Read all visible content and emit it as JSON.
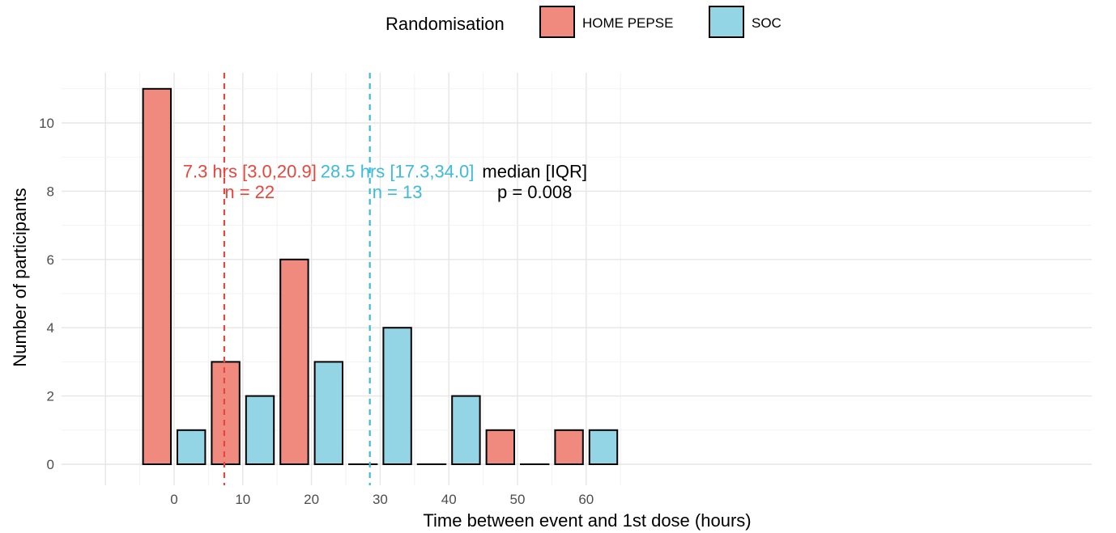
{
  "chart_data": {
    "type": "bar",
    "xlabel": "Time between event and 1st dose (hours)",
    "ylabel": "Number of participants",
    "xlim": [
      -10,
      65
    ],
    "ylim": [
      0,
      11
    ],
    "x_ticks": [
      0,
      10,
      20,
      30,
      40,
      50,
      60
    ],
    "y_ticks": [
      0,
      2,
      4,
      6,
      8,
      10
    ],
    "grid": true,
    "bin_width": 5,
    "bins": [
      {
        "start": -5,
        "end": 0,
        "group": "HOME PEPSE",
        "count": 11
      },
      {
        "start": 0,
        "end": 5,
        "group": "SOC",
        "count": 1
      },
      {
        "start": 5,
        "end": 10,
        "group": "HOME PEPSE",
        "count": 3
      },
      {
        "start": 10,
        "end": 15,
        "group": "SOC",
        "count": 2
      },
      {
        "start": 15,
        "end": 20,
        "group": "HOME PEPSE",
        "count": 6
      },
      {
        "start": 20,
        "end": 25,
        "group": "SOC",
        "count": 3
      },
      {
        "start": 25,
        "end": 30,
        "group": "HOME PEPSE",
        "count": 0
      },
      {
        "start": 30,
        "end": 35,
        "group": "SOC",
        "count": 4
      },
      {
        "start": 35,
        "end": 40,
        "group": "HOME PEPSE",
        "count": 0
      },
      {
        "start": 40,
        "end": 45,
        "group": "SOC",
        "count": 2
      },
      {
        "start": 45,
        "end": 50,
        "group": "HOME PEPSE",
        "count": 1
      },
      {
        "start": 50,
        "end": 55,
        "group": "SOC",
        "count": 0
      },
      {
        "start": 55,
        "end": 60,
        "group": "HOME PEPSE",
        "count": 1
      },
      {
        "start": 60,
        "end": 65,
        "group": "SOC",
        "count": 1
      }
    ],
    "legend": {
      "title": "Randomisation",
      "position": "top-center",
      "entries": [
        {
          "name": "HOME PEPSE",
          "color": "#F08A7E"
        },
        {
          "name": "SOC",
          "color": "#93D5E5"
        }
      ]
    },
    "median_lines": [
      {
        "group": "HOME PEPSE",
        "x": 7.3,
        "color": "#E8453C"
      },
      {
        "group": "SOC",
        "x": 28.5,
        "color": "#3DBBD9"
      }
    ],
    "annotations": [
      {
        "group": "HOME PEPSE",
        "line1": "7.3 hrs [3.0,20.9]",
        "line2": "n = 22",
        "color": "#E8453C",
        "x": 11,
        "y": [
          8.4,
          7.8
        ]
      },
      {
        "group": "SOC",
        "line1": "28.5 hrs [17.3,34.0]",
        "line2": "n = 13",
        "color": "#3DBBD9",
        "x": 32.5,
        "y": [
          8.4,
          7.8
        ]
      },
      {
        "group": "stats",
        "line1": "median [IQR]",
        "line2": "p = 0.008",
        "color": "#000000",
        "x": 52.5,
        "y": [
          8.4,
          7.8
        ]
      }
    ]
  }
}
